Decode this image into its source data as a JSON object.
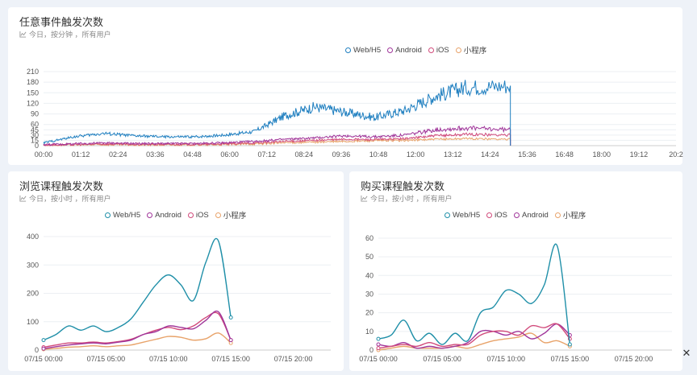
{
  "subtitle_icon": "line-chart-icon",
  "close_icon": "close-icon",
  "charts": {
    "top": {
      "title": "任意事件触发次数",
      "subtitle": "今日，按分钟 ，所有用户",
      "legend": [
        "Web/H5",
        "Android",
        "iOS",
        "小程序"
      ]
    },
    "bl": {
      "title": "浏览课程触发次数",
      "subtitle": "今日，按小时 ，所有用户",
      "legend": [
        "Web/H5",
        "Android",
        "iOS",
        "小程序"
      ]
    },
    "br": {
      "title": "购买课程触发次数",
      "subtitle": "今日，按小时 ，所有用户",
      "legend": [
        "Web/H5",
        "iOS",
        "Android",
        "小程序"
      ]
    }
  },
  "chart_data": [
    {
      "type": "line",
      "title": "任意事件触发次数",
      "x_ticks": [
        "00:00",
        "01:12",
        "02:24",
        "03:36",
        "04:48",
        "06:00",
        "07:12",
        "08:24",
        "09:36",
        "10:48",
        "12:00",
        "13:12",
        "14:24",
        "15:36",
        "16:48",
        "18:00",
        "19:12",
        "20:2"
      ],
      "y_ticks": [
        0,
        15,
        30,
        45,
        60,
        90,
        120,
        150,
        180,
        210
      ],
      "ylim": [
        0,
        210
      ],
      "x_unit": "hours",
      "series": [
        {
          "name": "Web/H5",
          "color": "#1f7fc0",
          "x": [
            0,
            1,
            2,
            3,
            4,
            5,
            6,
            7,
            8,
            9,
            10,
            11,
            12,
            13,
            14,
            15.5
          ],
          "y": [
            8,
            25,
            35,
            28,
            25,
            25,
            30,
            40,
            85,
            110,
            95,
            80,
            100,
            140,
            165,
            170
          ]
        },
        {
          "name": "Android",
          "color": "#a0359a",
          "x": [
            0,
            1,
            2,
            3,
            4,
            5,
            6,
            7,
            8,
            9,
            10,
            11,
            12,
            13,
            14,
            15.5
          ],
          "y": [
            3,
            5,
            8,
            6,
            6,
            6,
            8,
            12,
            18,
            22,
            28,
            25,
            30,
            45,
            50,
            45
          ]
        },
        {
          "name": "iOS",
          "color": "#d14a7b",
          "x": [
            0,
            1,
            2,
            3,
            4,
            5,
            6,
            7,
            8,
            9,
            10,
            11,
            12,
            13,
            14,
            15.5
          ],
          "y": [
            2,
            3,
            5,
            4,
            4,
            4,
            5,
            8,
            12,
            15,
            18,
            17,
            20,
            28,
            32,
            30
          ]
        },
        {
          "name": "小程序",
          "color": "#e8a36a",
          "x": [
            0,
            1,
            2,
            3,
            4,
            5,
            6,
            7,
            8,
            9,
            10,
            11,
            12,
            13,
            14,
            15.5
          ],
          "y": [
            1,
            2,
            3,
            2,
            2,
            2,
            3,
            5,
            8,
            10,
            12,
            14,
            15,
            18,
            20,
            18
          ]
        }
      ]
    },
    {
      "type": "line",
      "title": "浏览课程触发次数",
      "x_ticks": [
        "07/15 00:00",
        "07/15 05:00",
        "07/15 10:00",
        "07/15 15:00",
        "07/15 20:00"
      ],
      "y_ticks": [
        0,
        100,
        200,
        300,
        400
      ],
      "ylim": [
        0,
        420
      ],
      "x_unit": "hours",
      "series": [
        {
          "name": "Web/H5",
          "color": "#1f8fa8",
          "x": [
            0,
            1,
            2,
            3,
            4,
            5,
            6,
            7,
            8,
            9,
            10,
            11,
            12,
            13,
            14,
            15
          ],
          "y": [
            35,
            55,
            85,
            70,
            85,
            65,
            80,
            110,
            170,
            230,
            265,
            230,
            175,
            310,
            385,
            115
          ]
        },
        {
          "name": "Android",
          "color": "#a0359a",
          "x": [
            0,
            1,
            2,
            3,
            4,
            5,
            6,
            7,
            8,
            9,
            10,
            11,
            12,
            13,
            14,
            15
          ],
          "y": [
            5,
            12,
            18,
            22,
            25,
            22,
            28,
            35,
            55,
            65,
            85,
            80,
            75,
            105,
            135,
            35
          ]
        },
        {
          "name": "iOS",
          "color": "#d14a7b",
          "x": [
            0,
            1,
            2,
            3,
            4,
            5,
            6,
            7,
            8,
            9,
            10,
            11,
            12,
            13,
            14,
            15
          ],
          "y": [
            10,
            18,
            25,
            25,
            28,
            25,
            30,
            38,
            55,
            70,
            80,
            72,
            85,
            115,
            128,
            35
          ]
        },
        {
          "name": "小程序",
          "color": "#e8a36a",
          "x": [
            0,
            1,
            2,
            3,
            4,
            5,
            6,
            7,
            8,
            9,
            10,
            11,
            12,
            13,
            14,
            15
          ],
          "y": [
            3,
            6,
            10,
            12,
            15,
            12,
            15,
            18,
            28,
            38,
            48,
            45,
            35,
            40,
            60,
            25
          ]
        }
      ]
    },
    {
      "type": "line",
      "title": "购买课程触发次数",
      "x_ticks": [
        "07/15 00:00",
        "07/15 05:00",
        "07/15 10:00",
        "07/15 15:00",
        "07/15 20:00"
      ],
      "y_ticks": [
        0,
        10,
        20,
        30,
        40,
        50,
        60
      ],
      "ylim": [
        0,
        63
      ],
      "x_unit": "hours",
      "series": [
        {
          "name": "Web/H5",
          "color": "#1f8fa8",
          "x": [
            0,
            1,
            2,
            3,
            4,
            5,
            6,
            7,
            8,
            9,
            10,
            11,
            12,
            13,
            14,
            15
          ],
          "y": [
            6,
            8,
            16,
            5,
            9,
            3,
            9,
            5,
            20,
            23,
            32,
            30,
            25,
            35,
            56,
            3
          ]
        },
        {
          "name": "iOS",
          "color": "#d14a7b",
          "x": [
            0,
            1,
            2,
            3,
            4,
            5,
            6,
            7,
            8,
            9,
            10,
            11,
            12,
            13,
            14,
            15
          ],
          "y": [
            1,
            2,
            3,
            2,
            4,
            2,
            3,
            3,
            8,
            10,
            10,
            8,
            13,
            12,
            14,
            6
          ]
        },
        {
          "name": "Android",
          "color": "#a0359a",
          "x": [
            0,
            1,
            2,
            3,
            4,
            5,
            6,
            7,
            8,
            9,
            10,
            11,
            12,
            13,
            14,
            15
          ],
          "y": [
            3,
            2,
            4,
            1,
            2,
            1,
            2,
            4,
            10,
            10,
            8,
            10,
            6,
            9,
            14,
            8
          ]
        },
        {
          "name": "小程序",
          "color": "#e8a36a",
          "x": [
            0,
            1,
            2,
            3,
            4,
            5,
            6,
            7,
            8,
            9,
            10,
            11,
            12,
            13,
            14,
            15
          ],
          "y": [
            0,
            1,
            2,
            1,
            1,
            1,
            2,
            1,
            3,
            5,
            6,
            7,
            9,
            4,
            5,
            2
          ]
        }
      ]
    }
  ]
}
